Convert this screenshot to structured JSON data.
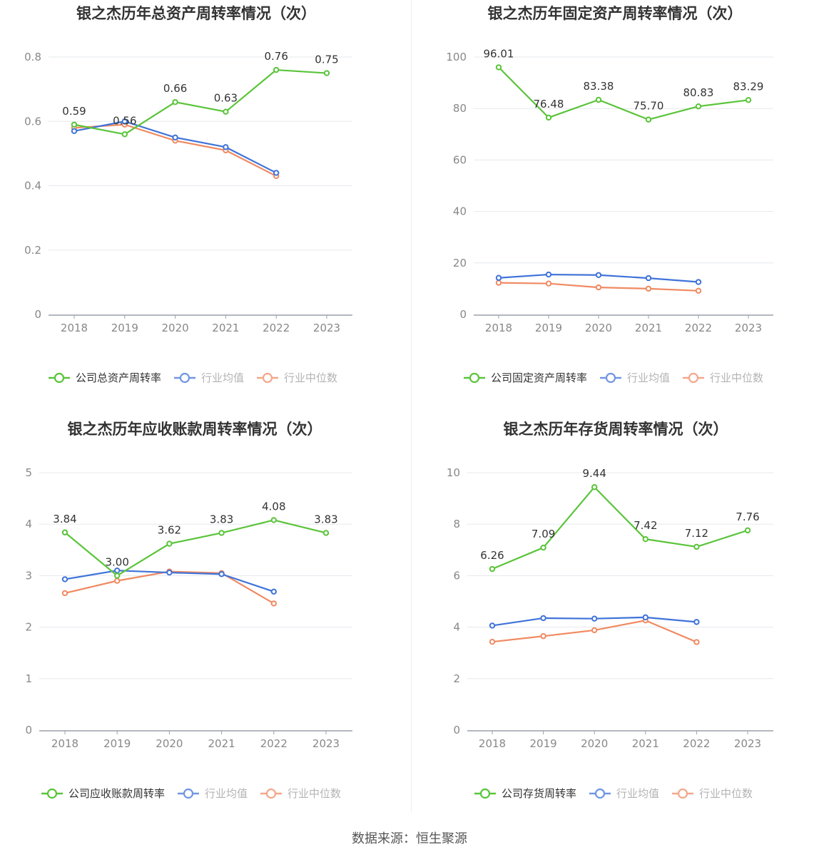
{
  "colors": {
    "company": "#5ac43a",
    "avg": "#3f73d9",
    "median": "#f08a62",
    "grid": "#e6e8ee",
    "axis": "#9aa0a8"
  },
  "source_text": "数据来源：恒生聚源",
  "chart_data": [
    {
      "type": "line",
      "title": "银之杰历年总资产周转率情况（次）",
      "categories": [
        "2018",
        "2019",
        "2020",
        "2021",
        "2022",
        "2023"
      ],
      "ylim": [
        0,
        0.8
      ],
      "yticks": [
        "0",
        "0.2",
        "0.4",
        "0.6",
        "0.8"
      ],
      "series": [
        {
          "name": "公司总资产周转率",
          "role": "company",
          "values": [
            0.59,
            0.56,
            0.66,
            0.63,
            0.76,
            0.75
          ],
          "labels": [
            "0.59",
            "0.56",
            "0.66",
            "0.63",
            "0.76",
            "0.75"
          ]
        },
        {
          "name": "行业均值",
          "role": "avg",
          "values": [
            0.57,
            0.6,
            0.55,
            0.52,
            0.44,
            null
          ]
        },
        {
          "name": "行业中位数",
          "role": "median",
          "values": [
            0.58,
            0.59,
            0.54,
            0.51,
            0.43,
            null
          ]
        }
      ],
      "legend": "bottom",
      "grid": true
    },
    {
      "type": "line",
      "title": "银之杰历年固定资产周转率情况（次）",
      "categories": [
        "2018",
        "2019",
        "2020",
        "2021",
        "2022",
        "2023"
      ],
      "ylim": [
        0,
        100
      ],
      "yticks": [
        "0",
        "20",
        "40",
        "60",
        "80",
        "100"
      ],
      "series": [
        {
          "name": "公司固定资产周转率",
          "role": "company",
          "values": [
            96.01,
            76.48,
            83.38,
            75.7,
            80.83,
            83.29
          ],
          "labels": [
            "96.01",
            "76.48",
            "83.38",
            "75.70",
            "80.83",
            "83.29"
          ]
        },
        {
          "name": "行业均值",
          "role": "avg",
          "values": [
            14.2,
            15.5,
            15.3,
            14.1,
            12.6,
            null
          ]
        },
        {
          "name": "行业中位数",
          "role": "median",
          "values": [
            12.3,
            12.0,
            10.5,
            10.0,
            9.2,
            null
          ]
        }
      ],
      "legend": "bottom",
      "grid": true
    },
    {
      "type": "line",
      "title": "银之杰历年应收账款周转率情况（次）",
      "categories": [
        "2018",
        "2019",
        "2020",
        "2021",
        "2022",
        "2023"
      ],
      "ylim": [
        0,
        5
      ],
      "yticks": [
        "0",
        "1",
        "2",
        "3",
        "4",
        "5"
      ],
      "series": [
        {
          "name": "公司应收账款周转率",
          "role": "company",
          "values": [
            3.84,
            3.0,
            3.62,
            3.83,
            4.08,
            3.83
          ],
          "labels": [
            "3.84",
            "3.00",
            "3.62",
            "3.83",
            "4.08",
            "3.83"
          ]
        },
        {
          "name": "行业均值",
          "role": "avg",
          "values": [
            2.93,
            3.1,
            3.06,
            3.03,
            2.69,
            null
          ]
        },
        {
          "name": "行业中位数",
          "role": "median",
          "values": [
            2.66,
            2.9,
            3.08,
            3.05,
            2.46,
            null
          ]
        }
      ],
      "legend": "bottom",
      "grid": true
    },
    {
      "type": "line",
      "title": "银之杰历年存货周转率情况（次）",
      "categories": [
        "2018",
        "2019",
        "2020",
        "2021",
        "2022",
        "2023"
      ],
      "ylim": [
        0,
        10
      ],
      "yticks": [
        "0",
        "2",
        "4",
        "6",
        "8",
        "10"
      ],
      "series": [
        {
          "name": "公司存货周转率",
          "role": "company",
          "values": [
            6.26,
            7.09,
            9.44,
            7.42,
            7.12,
            7.76
          ],
          "labels": [
            "6.26",
            "7.09",
            "9.44",
            "7.42",
            "7.12",
            "7.76"
          ]
        },
        {
          "name": "行业均值",
          "role": "avg",
          "values": [
            4.06,
            4.35,
            4.33,
            4.38,
            4.2,
            null
          ]
        },
        {
          "name": "行业中位数",
          "role": "median",
          "values": [
            3.43,
            3.65,
            3.88,
            4.26,
            3.42,
            null
          ]
        }
      ],
      "legend": "bottom",
      "grid": true
    }
  ]
}
